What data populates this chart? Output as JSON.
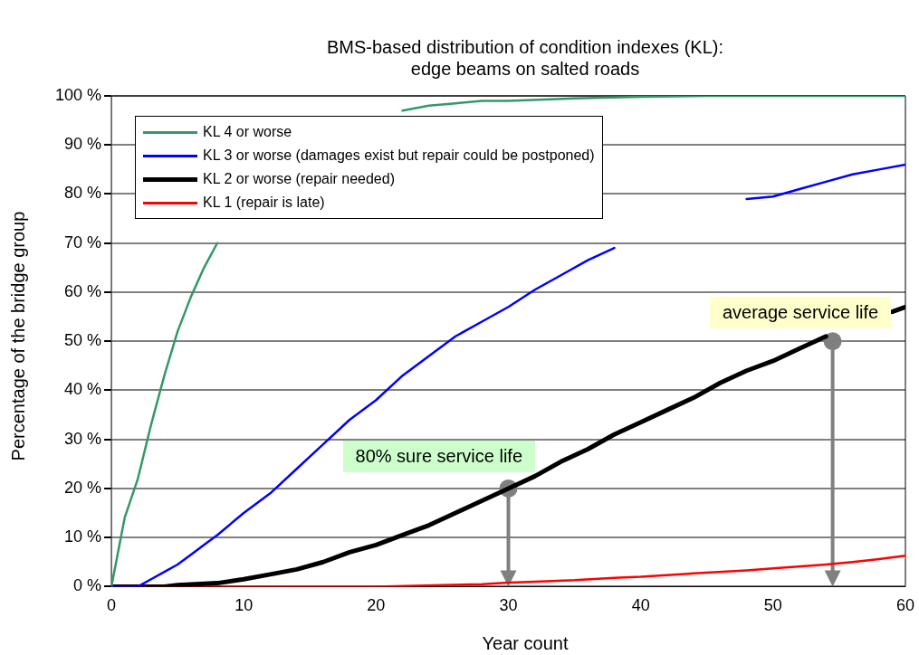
{
  "chart_data": {
    "type": "line",
    "title": "BMS-based distribution of condition indexes (KL):\nedge beams on salted roads",
    "xlabel": "Year count",
    "ylabel": "Percentage of the bridge group",
    "xlim": [
      0,
      60
    ],
    "xticks": [
      0,
      10,
      20,
      30,
      40,
      50,
      60
    ],
    "ylim": [
      0,
      100
    ],
    "yticks": [
      {
        "value": 0,
        "label": "0 %"
      },
      {
        "value": 10,
        "label": "10 %"
      },
      {
        "value": 20,
        "label": "20 %"
      },
      {
        "value": 30,
        "label": "30 %"
      },
      {
        "value": 40,
        "label": "40 %"
      },
      {
        "value": 50,
        "label": "50 %"
      },
      {
        "value": 60,
        "label": "60 %"
      },
      {
        "value": 70,
        "label": "70 %"
      },
      {
        "value": 80,
        "label": "80 %"
      },
      {
        "value": 90,
        "label": "90 %"
      },
      {
        "value": 100,
        "label": "100 %"
      }
    ],
    "grid": "y",
    "legend": "top left",
    "marker": "none",
    "line_style": "solid",
    "series": [
      {
        "name": "KL 4 or worse",
        "color": "#339966",
        "x": [
          0,
          1,
          2,
          3,
          4,
          5,
          6,
          7,
          8,
          9,
          22,
          24,
          26,
          28,
          30,
          35,
          40,
          45,
          50,
          55,
          60
        ],
        "values": [
          0,
          14,
          22,
          33,
          43,
          52,
          59,
          65,
          70,
          null,
          97,
          98,
          98.5,
          99,
          99,
          99.5,
          99.8,
          100,
          100,
          100,
          100
        ]
      },
      {
        "name": "KL 3 or worse (damages exist but repair could be postponed)",
        "color": "#0000ff",
        "x": [
          0,
          2,
          3,
          4,
          5,
          6,
          7,
          8,
          10,
          12,
          14,
          16,
          18,
          20,
          22,
          24,
          26,
          28,
          30,
          32,
          34,
          36,
          38,
          40,
          48,
          50,
          52,
          54,
          56,
          58,
          60
        ],
        "values": [
          0,
          0,
          1.5,
          3,
          4.5,
          6.5,
          8.5,
          10.5,
          15,
          19,
          24,
          29,
          34,
          38,
          43,
          47,
          51,
          54,
          57,
          60.5,
          63.5,
          66.5,
          69,
          null,
          79,
          79.5,
          81,
          82.5,
          84,
          85,
          86
        ]
      },
      {
        "name": "KL 2 or worse (repair needed)",
        "color": "#000000",
        "x": [
          0,
          4,
          5,
          8,
          10,
          12,
          14,
          16,
          18,
          20,
          22,
          24,
          26,
          28,
          30,
          32,
          34,
          36,
          38,
          40,
          42,
          44,
          46,
          48,
          50,
          52,
          54,
          56,
          59,
          60
        ],
        "values": [
          0,
          0,
          0.3,
          0.7,
          1.5,
          2.5,
          3.5,
          5,
          7,
          8.5,
          10.5,
          12.5,
          15,
          17.5,
          20,
          22.5,
          25.5,
          28,
          31,
          33.5,
          36,
          38.5,
          41.5,
          44,
          46,
          48.5,
          51,
          null,
          56,
          57
        ]
      },
      {
        "name": "KL 1 (repair is late)",
        "color": "#ff0000",
        "x": [
          0,
          20,
          25,
          28,
          30,
          32,
          35,
          38,
          40,
          44,
          48,
          50,
          54,
          56,
          58,
          60
        ],
        "values": [
          0,
          0,
          0.3,
          0.5,
          0.8,
          1,
          1.3,
          1.8,
          2,
          2.7,
          3.3,
          3.7,
          4.5,
          5,
          5.6,
          6.3
        ]
      }
    ],
    "annotations": [
      {
        "text": "80% sure service life",
        "x": 30,
        "y": 20
      },
      {
        "text": "average service life",
        "x": 54.5,
        "y": 50
      }
    ]
  }
}
